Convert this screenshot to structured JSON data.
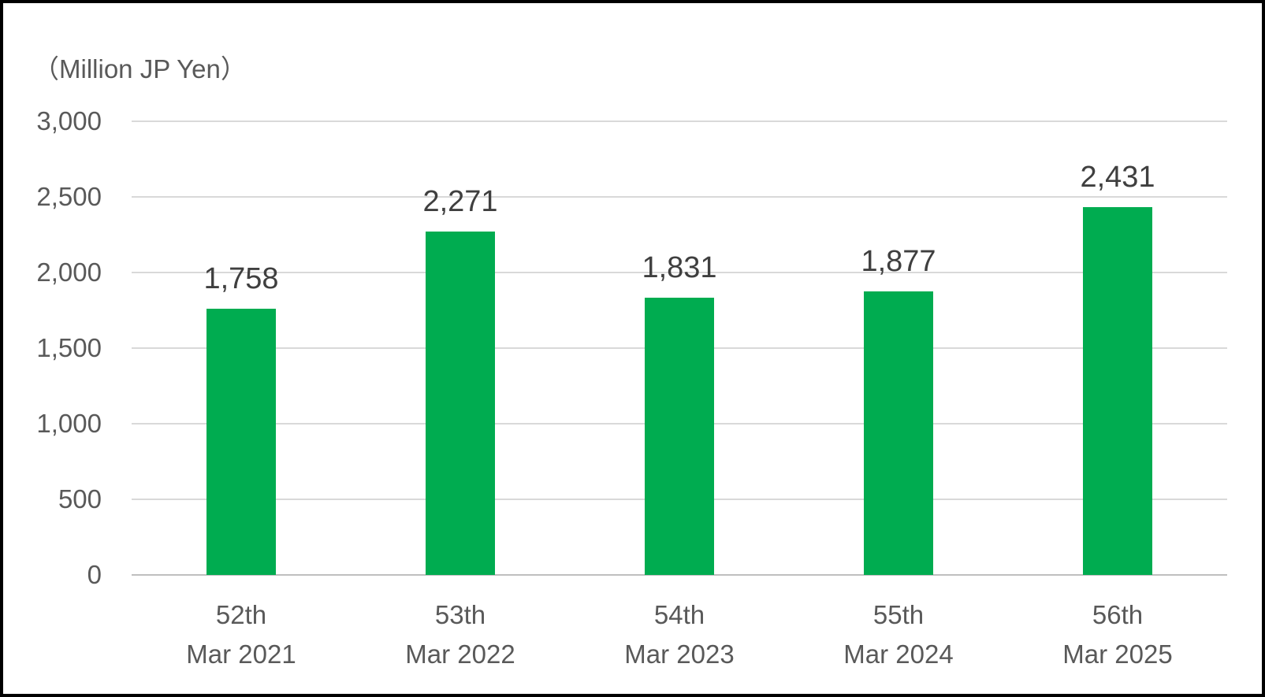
{
  "title": "（Million JP Yen）",
  "colors": {
    "bar": "#00AC50",
    "gridline": "#D9D9D9",
    "axis_line": "#BFBFBF",
    "axis_text": "#595959",
    "data_label_text": "#3F3F3F",
    "frame_border": "#000000",
    "background": "#FFFFFF"
  },
  "chart_data": {
    "type": "bar",
    "title": "（Million JP Yen）",
    "xlabel": "",
    "ylabel": "Million JP Yen",
    "categories": [
      {
        "line1": "52th",
        "line2": "Mar 2021"
      },
      {
        "line1": "53th",
        "line2": "Mar 2022"
      },
      {
        "line1": "54th",
        "line2": "Mar 2023"
      },
      {
        "line1": "55th",
        "line2": "Mar 2024"
      },
      {
        "line1": "56th",
        "line2": "Mar 2025"
      }
    ],
    "values": [
      1758,
      2271,
      1831,
      1877,
      2431
    ],
    "data_labels": [
      "1,758",
      "2,271",
      "1,831",
      "1,877",
      "2,431"
    ],
    "ylim": [
      0,
      3000
    ],
    "ytick_interval": 500,
    "yticks": [
      {
        "value": 0,
        "label": "0"
      },
      {
        "value": 500,
        "label": "500"
      },
      {
        "value": 1000,
        "label": "1,000"
      },
      {
        "value": 1500,
        "label": "1,500"
      },
      {
        "value": 2000,
        "label": "2,000"
      },
      {
        "value": 2500,
        "label": "2,500"
      },
      {
        "value": 3000,
        "label": "3,000"
      }
    ],
    "grid": true,
    "legend_position": "none",
    "bar_color": "#00AC50"
  }
}
